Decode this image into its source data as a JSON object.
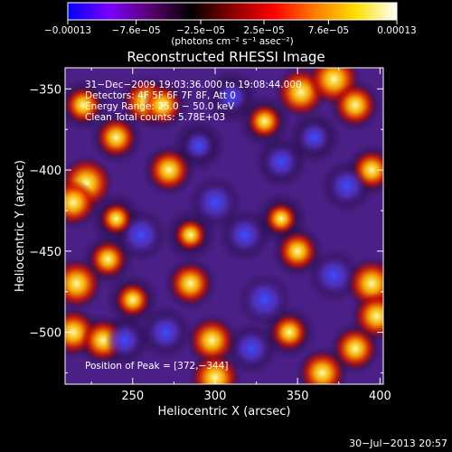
{
  "chart_data": {
    "type": "heatmap",
    "title": "Reconstructed RHESSI Image",
    "xlabel": "Heliocentric X (arcsec)",
    "ylabel": "Heliocentric Y (arcsec)",
    "xlim": [
      209,
      402
    ],
    "ylim": [
      -532,
      -337
    ],
    "xticks": [
      250,
      300,
      350,
      400
    ],
    "yticks": [
      -350,
      -400,
      -450,
      -500
    ],
    "colorbar": {
      "range": [
        -0.00013,
        0.00013
      ],
      "tick_values": [
        -0.00013,
        -7.6e-05,
        -2.5e-05,
        2.5e-05,
        7.6e-05,
        0.00013
      ],
      "tick_labels": [
        "−0.00013",
        "−7.6e−05",
        "−2.5e−05",
        "2.5e−05",
        "7.6e−05",
        "0.00013"
      ],
      "unit_label": "(photons cm⁻² s⁻¹ asec⁻²)",
      "stops": [
        "#0000ff",
        "#7a00ff",
        "#5a0070",
        "#000000",
        "#8a0000",
        "#ff0000",
        "#ff7a00",
        "#ffe000",
        "#ffffff"
      ]
    },
    "annotations": [
      "31−Dec−2009 19:03:36.000 to 19:08:44.000",
      "Detectors: 4F 5F 6F 7F 8F, Att 0",
      "Energy Range: 25.0 − 50.0 keV",
      "Clean     Total counts: 5.78E+03"
    ],
    "peak_label": "Position of Peak = [372,−344]",
    "footer_date": "30−Jul−2013 20:57",
    "features": [
      {
        "x": 222,
        "y": -408,
        "v": 1.0
      },
      {
        "x": 214,
        "y": -420,
        "v": 0.8
      },
      {
        "x": 258,
        "y": -358,
        "v": 0.8
      },
      {
        "x": 268,
        "y": -360,
        "v": 0.6
      },
      {
        "x": 272,
        "y": -400,
        "v": 0.7
      },
      {
        "x": 290,
        "y": -385,
        "v": -0.3
      },
      {
        "x": 310,
        "y": -355,
        "v": -0.4
      },
      {
        "x": 352,
        "y": -352,
        "v": 0.9
      },
      {
        "x": 372,
        "y": -344,
        "v": 1.0
      },
      {
        "x": 385,
        "y": -360,
        "v": 0.7
      },
      {
        "x": 395,
        "y": -400,
        "v": 0.6
      },
      {
        "x": 380,
        "y": -410,
        "v": -0.6
      },
      {
        "x": 340,
        "y": -395,
        "v": -0.5
      },
      {
        "x": 300,
        "y": -420,
        "v": -0.7
      },
      {
        "x": 318,
        "y": -440,
        "v": -0.6
      },
      {
        "x": 255,
        "y": -440,
        "v": -0.7
      },
      {
        "x": 235,
        "y": -455,
        "v": 0.5
      },
      {
        "x": 216,
        "y": -470,
        "v": 0.9
      },
      {
        "x": 214,
        "y": -500,
        "v": 0.8
      },
      {
        "x": 232,
        "y": -505,
        "v": 0.7
      },
      {
        "x": 250,
        "y": -480,
        "v": 0.4
      },
      {
        "x": 285,
        "y": -470,
        "v": 0.7
      },
      {
        "x": 298,
        "y": -505,
        "v": 0.8
      },
      {
        "x": 270,
        "y": -500,
        "v": -0.6
      },
      {
        "x": 245,
        "y": -505,
        "v": -0.5
      },
      {
        "x": 330,
        "y": -480,
        "v": -0.8
      },
      {
        "x": 322,
        "y": -510,
        "v": -0.6
      },
      {
        "x": 350,
        "y": -450,
        "v": 0.6
      },
      {
        "x": 372,
        "y": -465,
        "v": -0.7
      },
      {
        "x": 395,
        "y": -470,
        "v": 0.9
      },
      {
        "x": 398,
        "y": -490,
        "v": 0.8
      },
      {
        "x": 385,
        "y": -510,
        "v": 0.7
      },
      {
        "x": 300,
        "y": -528,
        "v": 0.9
      },
      {
        "x": 365,
        "y": -525,
        "v": 0.8
      },
      {
        "x": 345,
        "y": -500,
        "v": 0.5
      },
      {
        "x": 240,
        "y": -380,
        "v": 0.6
      },
      {
        "x": 220,
        "y": -360,
        "v": 0.5
      },
      {
        "x": 330,
        "y": -370,
        "v": 0.4
      },
      {
        "x": 360,
        "y": -380,
        "v": -0.4
      },
      {
        "x": 285,
        "y": -440,
        "v": 0.3
      },
      {
        "x": 340,
        "y": -430,
        "v": 0.3
      },
      {
        "x": 240,
        "y": -430,
        "v": 0.3
      }
    ]
  }
}
